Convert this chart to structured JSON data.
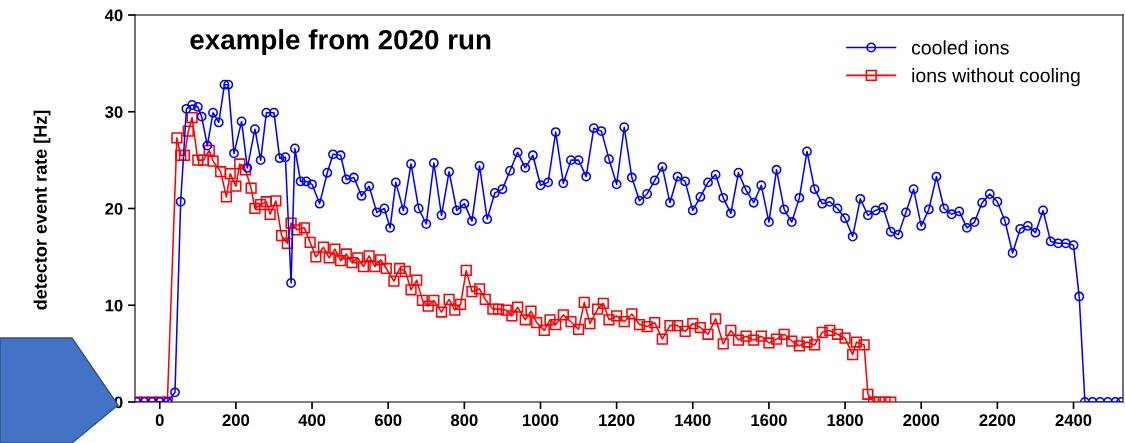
{
  "chart_data": {
    "type": "line",
    "ylabel": "detector event rate [Hz]",
    "annotations": [
      "example from 2020 run"
    ],
    "xlim": [
      -65,
      2530
    ],
    "xticks": [
      0,
      200,
      400,
      600,
      800,
      1000,
      1200,
      1400,
      1600,
      1800,
      2000,
      2200,
      2400
    ],
    "ylim": [
      0,
      40
    ],
    "yticks": [
      0,
      10,
      20,
      30,
      40
    ],
    "grid": false,
    "legend": "top right",
    "line_style": "solid",
    "series": [
      {
        "name": "cooled ions",
        "color": "#0000ff",
        "marker": "circle",
        "x": [
          -60,
          -40,
          -20,
          0,
          20,
          40,
          55,
          70,
          85,
          100,
          110,
          125,
          140,
          155,
          170,
          180,
          195,
          215,
          230,
          250,
          265,
          280,
          300,
          315,
          330,
          345,
          355,
          370,
          385,
          400,
          420,
          440,
          455,
          475,
          490,
          510,
          530,
          550,
          570,
          590,
          605,
          620,
          640,
          660,
          680,
          700,
          720,
          740,
          760,
          780,
          800,
          820,
          840,
          860,
          880,
          900,
          920,
          940,
          960,
          980,
          1000,
          1020,
          1040,
          1060,
          1080,
          1100,
          1120,
          1140,
          1160,
          1180,
          1200,
          1220,
          1240,
          1260,
          1280,
          1300,
          1320,
          1340,
          1360,
          1380,
          1400,
          1420,
          1440,
          1460,
          1480,
          1500,
          1520,
          1540,
          1560,
          1580,
          1600,
          1620,
          1640,
          1660,
          1680,
          1700,
          1720,
          1740,
          1760,
          1780,
          1800,
          1820,
          1840,
          1860,
          1880,
          1900,
          1920,
          1940,
          1960,
          1980,
          2000,
          2020,
          2040,
          2060,
          2080,
          2100,
          2120,
          2140,
          2160,
          2180,
          2200,
          2220,
          2240,
          2260,
          2280,
          2300,
          2320,
          2340,
          2360,
          2380,
          2400,
          2415,
          2430,
          2450,
          2470,
          2490,
          2510,
          2525
        ],
        "values": [
          0,
          0,
          0,
          0,
          0,
          1,
          20.7,
          30.3,
          30.7,
          30.5,
          29.5,
          26.5,
          29.9,
          28.9,
          32.8,
          32.8,
          25.7,
          29.0,
          24.2,
          28.2,
          25.0,
          29.9,
          29.9,
          25.2,
          25.3,
          12.3,
          26.2,
          22.8,
          22.8,
          22.5,
          20.5,
          23.7,
          25.6,
          25.5,
          23.0,
          23.2,
          21.3,
          22.3,
          19.6,
          20.0,
          18.0,
          22.7,
          19.8,
          24.6,
          20.0,
          18.4,
          24.7,
          19.3,
          23.8,
          19.8,
          20.5,
          18.7,
          24.4,
          18.9,
          21.6,
          22.0,
          23.9,
          25.8,
          24.2,
          25.5,
          22.4,
          22.7,
          27.9,
          22.6,
          25.0,
          25.0,
          23.3,
          28.3,
          28.0,
          25.1,
          22.5,
          28.4,
          23.2,
          20.8,
          21.5,
          22.9,
          24.3,
          20.6,
          23.3,
          22.8,
          19.8,
          21.2,
          22.7,
          23.5,
          21.1,
          19.5,
          23.7,
          21.9,
          20.6,
          22.4,
          18.6,
          24.0,
          19.9,
          18.6,
          21.1,
          25.9,
          22.0,
          20.5,
          20.7,
          20.0,
          19.0,
          17.1,
          21.0,
          19.3,
          19.8,
          20.1,
          17.6,
          17.3,
          19.6,
          22.0,
          18.2,
          19.9,
          23.3,
          20.0,
          19.4,
          19.7,
          18.0,
          18.6,
          20.6,
          21.5,
          20.7,
          18.7,
          15.4,
          17.9,
          18.2,
          17.5,
          19.8,
          16.6,
          16.4,
          16.4,
          16.2,
          10.9,
          0,
          0,
          0,
          0,
          0,
          0
        ]
      },
      {
        "name": "ions without cooling",
        "color": "#ff0000",
        "marker": "square",
        "x": [
          -60,
          -40,
          -20,
          0,
          20,
          45,
          55,
          65,
          75,
          85,
          100,
          115,
          130,
          140,
          160,
          175,
          185,
          200,
          210,
          225,
          240,
          250,
          265,
          280,
          290,
          305,
          320,
          335,
          345,
          360,
          380,
          395,
          410,
          430,
          445,
          460,
          475,
          490,
          505,
          520,
          535,
          550,
          565,
          580,
          595,
          615,
          630,
          645,
          660,
          675,
          690,
          705,
          720,
          740,
          760,
          775,
          790,
          805,
          820,
          840,
          855,
          875,
          890,
          910,
          925,
          940,
          960,
          975,
          990,
          1010,
          1025,
          1040,
          1060,
          1080,
          1100,
          1115,
          1130,
          1150,
          1165,
          1180,
          1200,
          1220,
          1240,
          1260,
          1280,
          1300,
          1320,
          1340,
          1360,
          1380,
          1400,
          1420,
          1440,
          1460,
          1480,
          1500,
          1520,
          1540,
          1560,
          1580,
          1600,
          1620,
          1640,
          1660,
          1680,
          1700,
          1720,
          1740,
          1760,
          1780,
          1800,
          1820,
          1830,
          1850,
          1860,
          1875,
          1890,
          1905,
          1920
        ],
        "values": [
          0,
          0,
          0,
          0,
          0,
          27.3,
          25.5,
          25.5,
          28.0,
          29.4,
          25.0,
          25.0,
          26.0,
          24.9,
          23.8,
          21.2,
          23.6,
          22.3,
          24.6,
          24.0,
          22.1,
          20.0,
          20.4,
          20.7,
          19.4,
          20.8,
          17.2,
          16.4,
          18.5,
          17.8,
          18.0,
          16.5,
          15.0,
          16.0,
          14.9,
          15.8,
          14.6,
          15.3,
          14.4,
          14.9,
          14.0,
          15.1,
          14.0,
          14.7,
          13.8,
          12.5,
          13.8,
          13.5,
          11.6,
          12.6,
          10.5,
          9.9,
          10.5,
          9.3,
          10.6,
          9.5,
          10.1,
          13.6,
          11.4,
          11.7,
          10.6,
          9.6,
          9.6,
          9.5,
          8.9,
          9.8,
          8.5,
          9.4,
          8.2,
          7.4,
          8.5,
          8.0,
          9.0,
          8.3,
          7.5,
          10.3,
          8.1,
          9.6,
          10.2,
          8.5,
          8.9,
          8.3,
          9.1,
          8.0,
          7.8,
          8.2,
          6.5,
          7.9,
          7.9,
          7.3,
          8.1,
          7.7,
          7.0,
          8.6,
          6.0,
          7.4,
          6.4,
          6.8,
          6.4,
          6.8,
          6.1,
          6.5,
          7.0,
          6.3,
          5.8,
          6.2,
          5.9,
          7.2,
          7.4,
          7.0,
          6.6,
          4.9,
          6.2,
          5.9,
          0.8,
          0,
          0,
          0,
          0
        ]
      }
    ]
  }
}
